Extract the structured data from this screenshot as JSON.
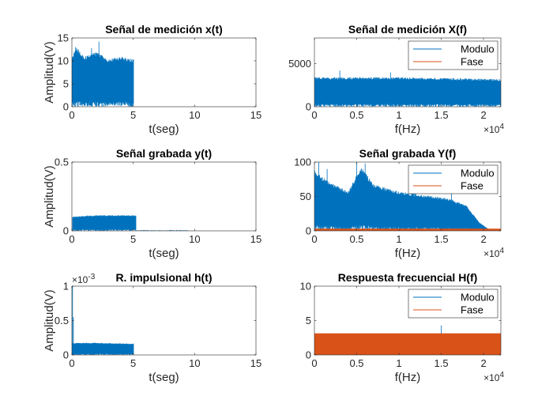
{
  "chart_data": [
    {
      "id": "p1",
      "type": "line",
      "title": "Señal de medición x(t)",
      "xlabel": "t(seg)",
      "ylabel": "Amplitud(V)",
      "xlim": [
        0,
        15
      ],
      "ylim": [
        0,
        15
      ],
      "xticks": [
        0,
        5,
        10,
        15
      ],
      "yticks": [
        0,
        5,
        10,
        15
      ],
      "xtick_labels": [
        "0",
        "5",
        "10",
        "15"
      ],
      "ytick_labels": [
        "0",
        "5",
        "10",
        "15"
      ],
      "x_exponent": "",
      "y_exponent": "",
      "legend": [],
      "series": [
        {
          "color": "#0072BD",
          "kind": "noise",
          "x_start": 0,
          "x_end": 5,
          "envelope": [
            [
              0,
              10.5
            ],
            [
              0.4,
              12.5
            ],
            [
              1,
              10.5
            ],
            [
              2,
              11.5
            ],
            [
              3,
              10
            ],
            [
              4,
              10.5
            ],
            [
              5,
              10
            ]
          ],
          "peaks": [
            [
              2.2,
              14.2
            ],
            [
              0.3,
              13
            ],
            [
              1.6,
              12.8
            ]
          ],
          "fill_fraction": 0.6
        }
      ]
    },
    {
      "id": "p2",
      "type": "line",
      "title": "Señal de medición X(f)",
      "xlabel": "f(Hz)",
      "ylabel": "",
      "xlim": [
        0,
        22050
      ],
      "ylim": [
        0,
        8000
      ],
      "xticks": [
        0,
        5000,
        10000,
        15000,
        20000
      ],
      "yticks": [
        0,
        5000
      ],
      "xtick_labels": [
        "0",
        "0.5",
        "1",
        "1.5",
        "2"
      ],
      "ytick_labels": [
        "0",
        "5000"
      ],
      "x_exponent": "×10^4",
      "y_exponent": "",
      "legend": [
        "Modulo",
        "Fase"
      ],
      "series": [
        {
          "name": "Modulo",
          "color": "#0072BD",
          "kind": "noise",
          "x_start": 0,
          "x_end": 22050,
          "envelope": [
            [
              0,
              3300
            ],
            [
              10000,
              3300
            ],
            [
              22050,
              3100
            ]
          ],
          "peaks": [
            [
              3000,
              4200
            ],
            [
              9000,
              4000
            ]
          ],
          "fill_fraction": 0.55
        },
        {
          "name": "Fase",
          "color": "#D95319",
          "kind": "noise",
          "x_start": 0,
          "x_end": 22050,
          "envelope": [
            [
              0,
              3.1
            ],
            [
              22050,
              3.1
            ]
          ],
          "peaks": [],
          "fill_fraction": 0.5
        }
      ]
    },
    {
      "id": "p3",
      "type": "line",
      "title": "Señal grabada y(t)",
      "xlabel": "t(seg)",
      "ylabel": "Amplitud(V)",
      "xlim": [
        0,
        15
      ],
      "ylim": [
        0,
        0.5
      ],
      "xticks": [
        0,
        5,
        10,
        15
      ],
      "yticks": [
        0,
        0.5
      ],
      "xtick_labels": [
        "0",
        "5",
        "10",
        "15"
      ],
      "ytick_labels": [
        "0",
        "0.5"
      ],
      "x_exponent": "",
      "y_exponent": "",
      "legend": [],
      "series": [
        {
          "color": "#0072BD",
          "kind": "noise",
          "x_start": 0.1,
          "x_end": 5.2,
          "envelope": [
            [
              0.1,
              0.1
            ],
            [
              2,
              0.11
            ],
            [
              5.2,
              0.11
            ]
          ],
          "peaks": [],
          "fill_fraction": 0.75,
          "tail_to": 9.5,
          "tail_level": 0.006
        }
      ]
    },
    {
      "id": "p4",
      "type": "line",
      "title": "Señal grabada Y(f)",
      "xlabel": "f(Hz)",
      "ylabel": "",
      "xlim": [
        0,
        22050
      ],
      "ylim": [
        0,
        100
      ],
      "xticks": [
        0,
        5000,
        10000,
        15000,
        20000
      ],
      "yticks": [
        0,
        50,
        100
      ],
      "xtick_labels": [
        "0",
        "0.5",
        "1",
        "1.5",
        "2"
      ],
      "ytick_labels": [
        "0",
        "50",
        "100"
      ],
      "x_exponent": "×10^4",
      "y_exponent": "",
      "legend": [
        "Modulo",
        "Fase"
      ],
      "series": [
        {
          "name": "Modulo",
          "color": "#0072BD",
          "kind": "noise",
          "x_start": 0,
          "x_end": 22050,
          "envelope": [
            [
              0,
              85
            ],
            [
              1500,
              70
            ],
            [
              4000,
              55
            ],
            [
              5500,
              90
            ],
            [
              7000,
              65
            ],
            [
              10000,
              55
            ],
            [
              13000,
              50
            ],
            [
              16000,
              45
            ],
            [
              18000,
              35
            ],
            [
              19500,
              12
            ],
            [
              20500,
              3
            ],
            [
              22050,
              1
            ]
          ],
          "peaks": [
            [
              500,
              100
            ],
            [
              5000,
              100
            ],
            [
              6000,
              98
            ],
            [
              1500,
              90
            ],
            [
              16200,
              55
            ]
          ],
          "fill_fraction": 0.25
        },
        {
          "name": "Fase",
          "color": "#D95319",
          "kind": "noise",
          "x_start": 0,
          "x_end": 22050,
          "envelope": [
            [
              0,
              3.1
            ],
            [
              22050,
              3.1
            ]
          ],
          "peaks": [],
          "fill_fraction": 0.5
        }
      ]
    },
    {
      "id": "p5",
      "type": "line",
      "title": "R. impulsional h(t)",
      "xlabel": "t(seg)",
      "ylabel": "Amplitud(V)",
      "xlim": [
        0,
        15
      ],
      "ylim": [
        0,
        0.001
      ],
      "xticks": [
        0,
        5,
        10,
        15
      ],
      "yticks": [
        0,
        0.0005,
        0.001
      ],
      "xtick_labels": [
        "0",
        "5",
        "10",
        "15"
      ],
      "ytick_labels": [
        "0",
        "0.5",
        "1"
      ],
      "x_exponent": "",
      "y_exponent": "×10^-3",
      "legend": [],
      "series": [
        {
          "color": "#0072BD",
          "kind": "noise",
          "x_start": 0,
          "x_end": 5,
          "envelope": [
            [
              0,
              0.00017
            ],
            [
              2,
              0.00017
            ],
            [
              5,
              0.00016
            ]
          ],
          "peaks": [
            [
              0.05,
              0.001
            ],
            [
              0.12,
              0.00055
            ]
          ],
          "fill_fraction": 0.7
        }
      ]
    },
    {
      "id": "p6",
      "type": "line",
      "title": "Respuesta frecuencial H(f)",
      "xlabel": "f(Hz)",
      "ylabel": "",
      "xlim": [
        0,
        22050
      ],
      "ylim": [
        0,
        10
      ],
      "xticks": [
        0,
        5000,
        10000,
        15000,
        20000
      ],
      "yticks": [
        0,
        5,
        10
      ],
      "xtick_labels": [
        "0",
        "0.5",
        "1",
        "1.5",
        "2"
      ],
      "ytick_labels": [
        "0",
        "5",
        "10"
      ],
      "x_exponent": "×10^4",
      "y_exponent": "",
      "legend": [
        "Modulo",
        "Fase"
      ],
      "series": [
        {
          "name": "Modulo",
          "color": "#0072BD",
          "kind": "noise",
          "x_start": 0,
          "x_end": 22050,
          "envelope": [
            [
              0,
              0.4
            ],
            [
              22050,
              0.4
            ]
          ],
          "peaks": [
            [
              15000,
              4.3
            ]
          ],
          "fill_fraction": 0.4
        },
        {
          "name": "Fase",
          "color": "#D95319",
          "kind": "noise",
          "x_start": 0,
          "x_end": 22050,
          "envelope": [
            [
              0,
              3.14
            ],
            [
              22050,
              3.14
            ]
          ],
          "peaks": [],
          "fill_fraction": 0.0
        }
      ]
    }
  ]
}
